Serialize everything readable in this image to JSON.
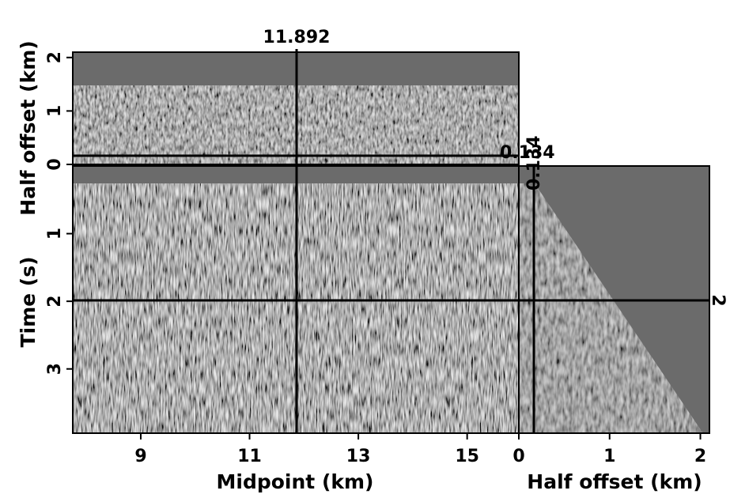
{
  "figure": {
    "panels": {
      "top": {
        "name": "time-slice",
        "ylabel": "Half offset (km)",
        "y_ticks": [
          "0",
          "1",
          "2"
        ],
        "y_tick_values": [
          0,
          1,
          2
        ],
        "y_range": [
          0,
          2.1
        ]
      },
      "main": {
        "name": "common-offset-section",
        "xlabel": "Midpoint (km)",
        "ylabel": "Time (s)",
        "x_ticks": [
          "9",
          "11",
          "13",
          "15"
        ],
        "x_tick_values": [
          9,
          11,
          13,
          15
        ],
        "x_range": [
          7.75,
          15.95
        ],
        "y_ticks": [
          "1",
          "2",
          "3"
        ],
        "y_tick_values": [
          1,
          2,
          3
        ],
        "y_range": [
          0,
          3.95
        ]
      },
      "side": {
        "name": "common-midpoint-gather",
        "xlabel": "Half offset (km)",
        "x_ticks": [
          "0",
          "1",
          "2"
        ],
        "x_tick_values": [
          0,
          1,
          2
        ],
        "x_range": [
          0,
          2.1
        ]
      }
    },
    "cursor": {
      "midpoint_label": "11.892",
      "midpoint": 11.892,
      "half_offset_label": "0.134",
      "half_offset": 0.134,
      "time_label": "2",
      "time": 2
    },
    "colors": {
      "background_gray": "#6b6b6b",
      "line": "#000000"
    }
  }
}
